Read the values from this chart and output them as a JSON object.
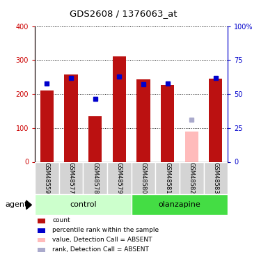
{
  "title": "GDS2608 / 1376063_at",
  "samples": [
    "GSM48559",
    "GSM48577",
    "GSM48578",
    "GSM48579",
    "GSM48580",
    "GSM48581",
    "GSM48582",
    "GSM48583"
  ],
  "red_bars": [
    210,
    258,
    135,
    310,
    243,
    226,
    null,
    245
  ],
  "pink_bars": [
    null,
    null,
    null,
    null,
    null,
    null,
    90,
    null
  ],
  "blue_markers": [
    230,
    248,
    185,
    252,
    228,
    230,
    null,
    247
  ],
  "light_blue_markers": [
    null,
    null,
    null,
    null,
    null,
    null,
    125,
    null
  ],
  "groups": [
    {
      "label": "control",
      "indices": [
        0,
        1,
        2,
        3
      ],
      "color": "#ccffcc"
    },
    {
      "label": "olanzapine",
      "indices": [
        4,
        5,
        6,
        7
      ],
      "color": "#44dd44"
    }
  ],
  "agent_label": "agent",
  "ylim_left": [
    0,
    400
  ],
  "ylim_right": [
    0,
    100
  ],
  "yticks_left": [
    0,
    100,
    200,
    300,
    400
  ],
  "yticks_right": [
    0,
    25,
    50,
    75,
    100
  ],
  "ytick_labels_right": [
    "0",
    "25",
    "50",
    "75",
    "100%"
  ],
  "left_axis_color": "#cc0000",
  "right_axis_color": "#0000cc",
  "bar_color_red": "#bb1111",
  "bar_color_pink": "#ffbbbb",
  "marker_color_blue": "#0000cc",
  "marker_color_lightblue": "#aaaacc",
  "legend_items": [
    {
      "color": "#bb1111",
      "label": "count"
    },
    {
      "color": "#0000cc",
      "label": "percentile rank within the sample"
    },
    {
      "color": "#ffbbbb",
      "label": "value, Detection Call = ABSENT"
    },
    {
      "color": "#aaaacc",
      "label": "rank, Detection Call = ABSENT"
    }
  ]
}
